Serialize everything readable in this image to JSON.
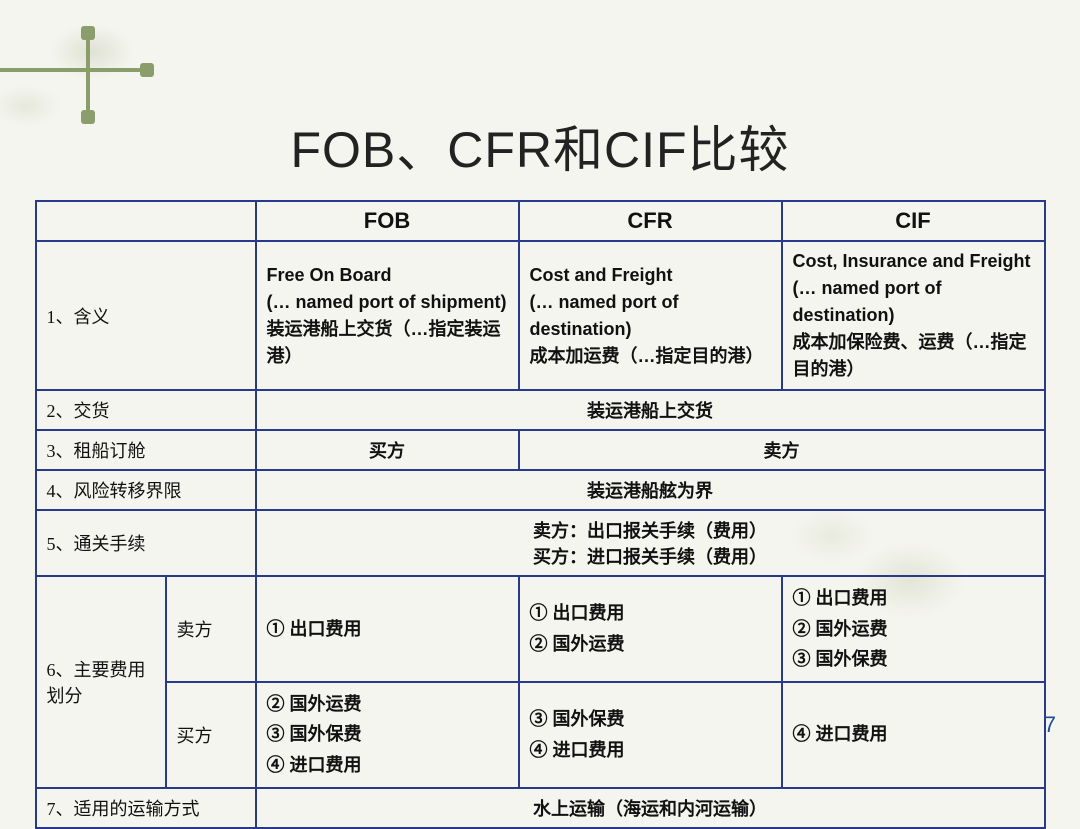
{
  "title": "FOB、CFR和CIF比较",
  "page_number": "7",
  "colors": {
    "border": "#2a3a8a",
    "background": "#f5f5ef",
    "ornament": "#8b9d6b",
    "pagenum": "#1e4aa0"
  },
  "headers": {
    "blank": "",
    "fob": "FOB",
    "cfr": "CFR",
    "cif": "CIF"
  },
  "rows": {
    "r1": {
      "label": "1、含义",
      "fob": "Free On Board\n(… named port of shipment)\n装运港船上交货（…指定装运港）",
      "cfr": "Cost and Freight\n(… named port of destination)\n成本加运费（…指定目的港）",
      "cif": "Cost, Insurance and Freight\n(… named port of destination)\n成本加保险费、运费（…指定目的港）"
    },
    "r2": {
      "label": "2、交货",
      "merged": "装运港船上交货"
    },
    "r3": {
      "label": "3、租船订舱",
      "fob": "买方",
      "cfr_cif": "卖方"
    },
    "r4": {
      "label": "4、风险转移界限",
      "merged": "装运港船舷为界"
    },
    "r5": {
      "label": "5、通关手续",
      "line1": "卖方：出口报关手续（费用）",
      "line2": "买方：进口报关手续（费用）"
    },
    "r6": {
      "label": "6、主要费用划分",
      "seller_label": "卖方",
      "buyer_label": "买方",
      "seller": {
        "fob": "① 出口费用",
        "cfr": "① 出口费用\n② 国外运费",
        "cif": "① 出口费用\n② 国外运费\n③ 国外保费"
      },
      "buyer": {
        "fob": "② 国外运费\n③ 国外保费\n④ 进口费用",
        "cfr": "③ 国外保费\n④ 进口费用",
        "cif": "④ 进口费用"
      }
    },
    "r7": {
      "label": "7、适用的运输方式",
      "merged": "水上运输（海运和内河运输）"
    }
  }
}
